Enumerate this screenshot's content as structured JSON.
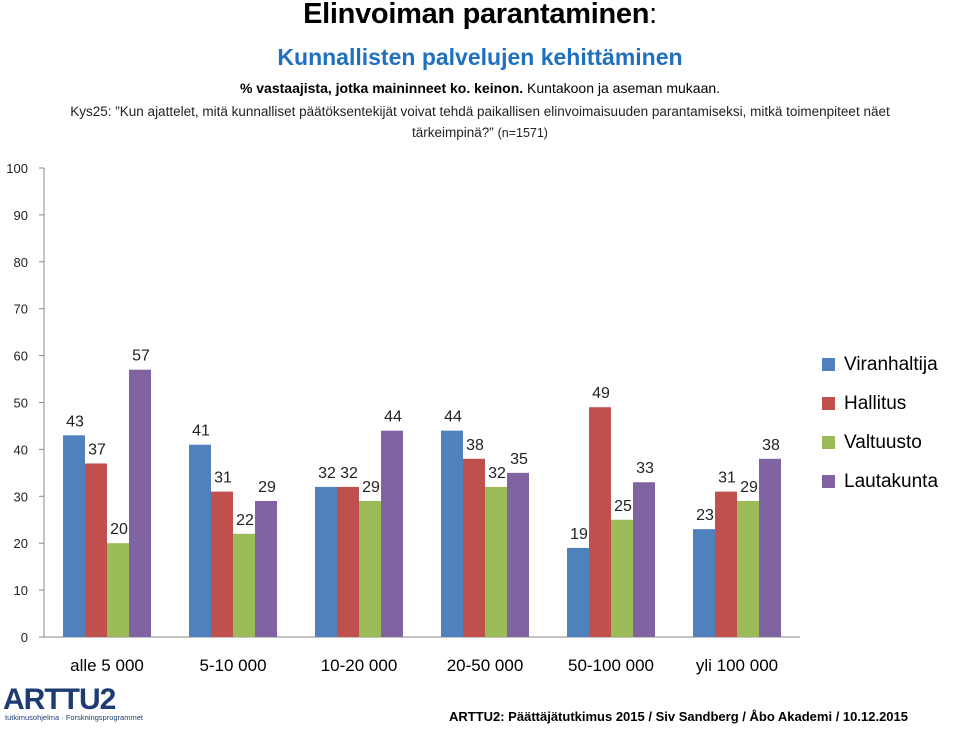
{
  "header": {
    "title": "Elinvoiman parantaminen",
    "title_colon": ":",
    "subtitle": "Kunnallisten palvelujen kehittäminen",
    "note_bold": "% vastaajista, jotka maininneet ko. keinon.",
    "note_rest": " Kuntakoon ja aseman mukaan.",
    "question": "Kys25: ”Kun ajattelet, mitä kunnalliset päätöksentekijät voivat tehdä paikallisen elinvoimaisuuden parantamiseksi, mitkä toimenpiteet näet tärkeimpinä?”",
    "n": "(n=1571)"
  },
  "chart_data": {
    "type": "bar",
    "categories": [
      "alle 5 000",
      "5-10 000",
      "10-20 000",
      "20-50 000",
      "50-100 000",
      "yli 100 000"
    ],
    "series": [
      {
        "name": "Viranhaltija",
        "color": "#4f81bd",
        "values": [
          43,
          41,
          32,
          44,
          19,
          23
        ]
      },
      {
        "name": "Hallitus",
        "color": "#c0504d",
        "values": [
          37,
          31,
          32,
          38,
          49,
          31
        ]
      },
      {
        "name": "Valtuusto",
        "color": "#9bbb59",
        "values": [
          20,
          22,
          29,
          32,
          25,
          29
        ]
      },
      {
        "name": "Lautakunta",
        "color": "#8064a2",
        "values": [
          57,
          29,
          44,
          35,
          33,
          38
        ]
      }
    ],
    "ylim": [
      0,
      100
    ],
    "yticks": [
      0,
      10,
      20,
      30,
      40,
      50,
      60,
      70,
      80,
      90,
      100
    ],
    "grid": false,
    "legend": "right"
  },
  "logo": {
    "text": "ARTTU2",
    "tagline": "tutkimusohjelma · Forskningsprogrammet",
    "color": "#1f3b73"
  },
  "footer": "ARTTU2: Päättäjätutkimus 2015 / Siv Sandberg / Åbo Akademi / 10.12.2015"
}
